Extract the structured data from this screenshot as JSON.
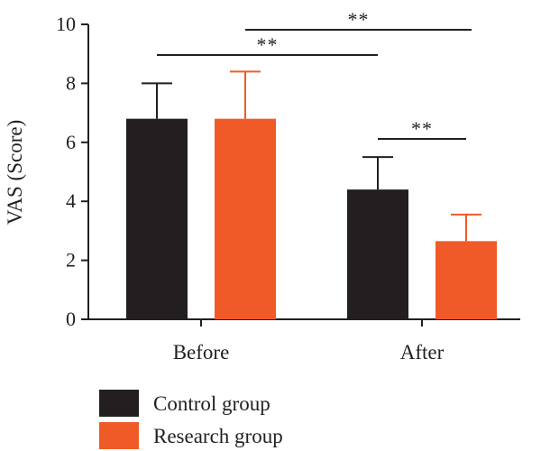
{
  "chart_data": {
    "type": "bar",
    "title": "",
    "xlabel": "",
    "ylabel": "VAS (Score)",
    "categories": [
      "Before",
      "After"
    ],
    "ylim": [
      0,
      10
    ],
    "yticks": [
      0,
      2,
      4,
      6,
      8,
      10
    ],
    "series": [
      {
        "name": "Control group",
        "color": "#231f20",
        "values": [
          6.8,
          4.4
        ],
        "errors": [
          1.2,
          1.1
        ]
      },
      {
        "name": "Research group",
        "color": "#f05a28",
        "values": [
          6.8,
          2.65
        ],
        "errors": [
          1.6,
          0.9
        ]
      }
    ],
    "significance": [
      {
        "label": "**",
        "from": "Control group / Before",
        "to": "Control group / After"
      },
      {
        "label": "**",
        "from": "Research group / Before",
        "to": "Research group / After"
      },
      {
        "label": "**",
        "from": "Control group / After",
        "to": "Research group / After"
      }
    ],
    "legend_position": "bottom-left"
  }
}
